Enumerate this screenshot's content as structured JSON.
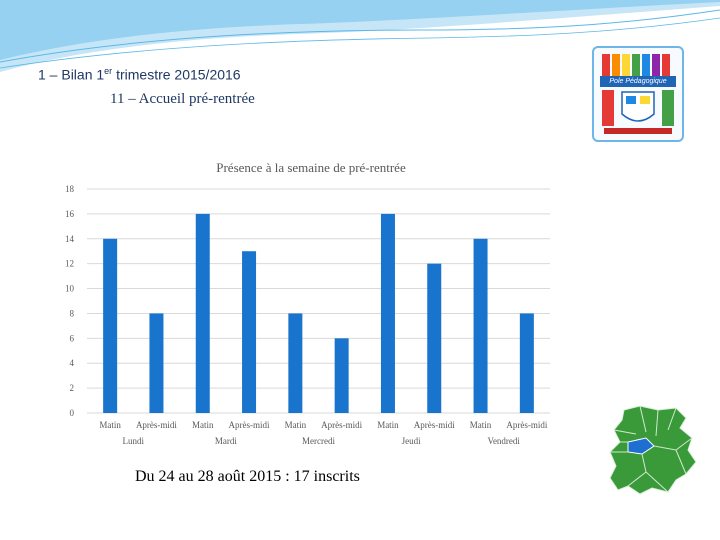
{
  "header": {
    "title_prefix": "1 – Bilan 1",
    "title_sup": "er",
    "title_suffix": " trimestre 2015/2016",
    "subtitle": "11 – Accueil pré-rentrée"
  },
  "logo": {
    "banner_text": "Pole Pédagogique"
  },
  "footer": {
    "text": "Du 24 au 28 août 2015 : 17 inscrits"
  },
  "colors": {
    "bar": "#1874cd",
    "grid": "#d9d9d9",
    "axis_text": "#595959",
    "wave": "#5bb8e8",
    "map_green": "#3a9a3a",
    "map_blue": "#1e6fd0"
  },
  "chart_data": {
    "type": "bar",
    "title": "Présence à la semaine de pré-rentrée",
    "groups": [
      "Lundi",
      "Mardi",
      "Mercredi",
      "Jeudi",
      "Vendredi"
    ],
    "categories": [
      "Matin",
      "Après-midi",
      "Matin",
      "Après-midi",
      "Matin",
      "Après-midi",
      "Matin",
      "Après-midi",
      "Matin",
      "Après-midi"
    ],
    "values": [
      14,
      8,
      16,
      13,
      8,
      6,
      16,
      12,
      14,
      8
    ],
    "ylim": [
      0,
      18
    ],
    "yticks": [
      "0",
      "2",
      "4",
      "6",
      "8",
      "10",
      "12",
      "14",
      "16",
      "18"
    ],
    "grid": true,
    "legend": "none"
  }
}
